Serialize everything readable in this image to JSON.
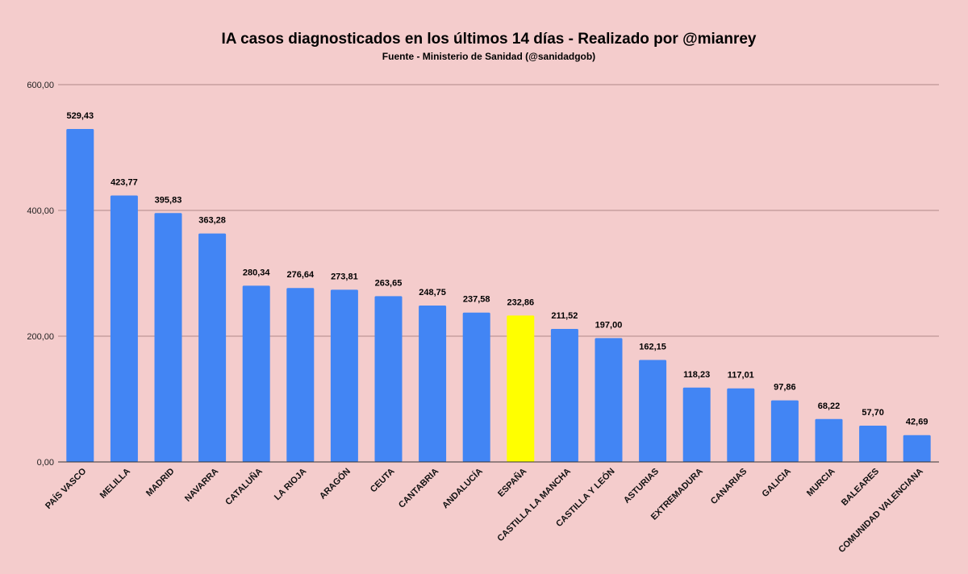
{
  "chart_data": {
    "type": "bar",
    "title": "IA casos diagnosticados en los últimos 14 días - Realizado por @mianrey",
    "subtitle": "Fuente - Ministerio de Sanidad (@sanidadgob)",
    "xlabel": "",
    "ylabel": "",
    "ylim": [
      0,
      600
    ],
    "yticks": [
      0,
      200,
      400,
      600
    ],
    "ytick_labels": [
      "0,00",
      "200,00",
      "400,00",
      "600,00"
    ],
    "grid": true,
    "legend": "none",
    "categories": [
      "PAÍS VASCO",
      "MELILLA",
      "MADRID",
      "NAVARRA",
      "CATALUÑA",
      "LA RIOJA",
      "ARAGÓN",
      "CEUTA",
      "CANTABRIA",
      "ANDALUCÍA",
      "ESPAÑA",
      "CASTILLA LA MANCHA",
      "CASTILLA Y LEÓN",
      "ASTURIAS",
      "EXTREMADURA",
      "CANARIAS",
      "GALICIA",
      "MURCIA",
      "BALEARES",
      "COMUNIDAD VALENCIANA"
    ],
    "values": [
      529.43,
      423.77,
      395.83,
      363.28,
      280.34,
      276.64,
      273.81,
      263.65,
      248.75,
      237.58,
      232.86,
      211.52,
      197.0,
      162.15,
      118.23,
      117.01,
      97.86,
      68.22,
      57.7,
      42.69
    ],
    "value_labels": [
      "529,43",
      "423,77",
      "395,83",
      "363,28",
      "280,34",
      "276,64",
      "273,81",
      "263,65",
      "248,75",
      "237,58",
      "232,86",
      "211,52",
      "197,00",
      "162,15",
      "118,23",
      "117,01",
      "97,86",
      "68,22",
      "57,70",
      "42,69"
    ],
    "colors": {
      "bar": "#4285f4",
      "highlight": "#ffff00",
      "highlight_category": "ESPAÑA",
      "background": "#f4cccc",
      "grid": "#b08888",
      "axis": "#333333"
    }
  }
}
